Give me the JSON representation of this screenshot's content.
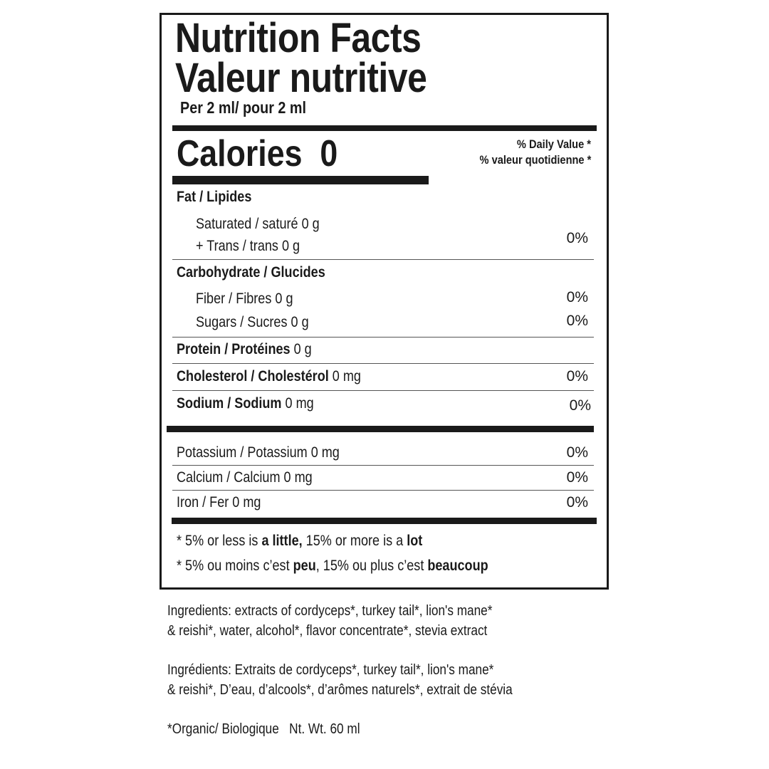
{
  "header": {
    "title_en": "Nutrition Facts",
    "title_fr": "Valeur nutritive",
    "serving": "Per 2 ml/ pour 2 ml"
  },
  "calories": {
    "label": "Calories",
    "value": "0"
  },
  "daily_value": {
    "en": "% Daily Value *",
    "fr": "% valeur quotidienne *"
  },
  "nutrients": {
    "fat": {
      "label": "Fat / Lipides"
    },
    "saturated": {
      "label": "Saturated / saturé 0 g"
    },
    "trans": {
      "label": "+ Trans / trans 0 g"
    },
    "fat_pct": "0%",
    "carbohydrate": {
      "label": "Carbohydrate / Glucides"
    },
    "fiber": {
      "label": "Fiber / Fibres 0 g",
      "pct": "0%"
    },
    "sugars": {
      "label": "Sugars / Sucres 0 g",
      "pct": "0%"
    },
    "protein": {
      "label": "Protein / Protéines",
      "amount": "0 g"
    },
    "cholesterol": {
      "label": "Cholesterol / Cholestérol",
      "amount": "0 mg",
      "pct": "0%"
    },
    "sodium": {
      "label": "Sodium / Sodium",
      "amount": "0 mg",
      "pct": "0%"
    }
  },
  "minerals": [
    {
      "label": "Potassium / Potassium 0 mg",
      "pct": "0%"
    },
    {
      "label": "Calcium / Calcium 0 mg",
      "pct": "0%"
    },
    {
      "label": "Iron / Fer 0 mg",
      "pct": "0%"
    }
  ],
  "footnote": {
    "en_prefix": "* 5% or less is ",
    "en_bold1": "a little,",
    "en_mid": " 15% or more is a ",
    "en_bold2": "lot",
    "fr_prefix": "* 5% ou moins c’est ",
    "fr_bold1": "peu",
    "fr_mid": ", 15% ou plus c’est ",
    "fr_bold2": "beaucoup"
  },
  "ingredients": {
    "en_line1": "Ingredients: extracts of cordyceps*, turkey tail*, lion's mane*",
    "en_line2": "& reishi*, water, alcohol*,  flavor concentrate*, stevia extract",
    "fr_line1": "Ingrédients: Extraits de cordyceps*, turkey tail*, lion's mane*",
    "fr_line2": "& reishi*, D’eau,  d’alcools*,  d’arômes naturels*, extrait de stévia",
    "organic": "*Organic/ Biologique   Nt. Wt. 60 ml"
  }
}
